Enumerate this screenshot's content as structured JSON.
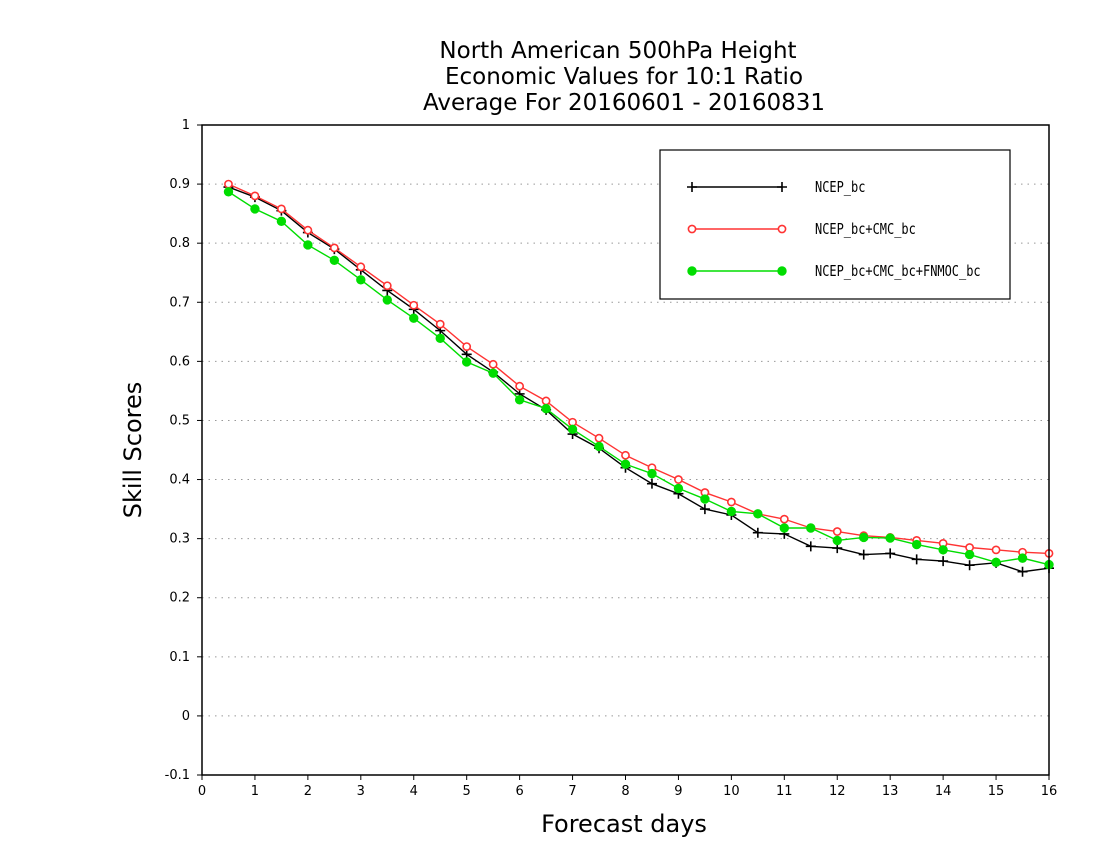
{
  "chart_data": {
    "type": "line",
    "title_lines": [
      "North American 500hPa Height",
      "Economic Values for 10:1 Ratio",
      "Average For 20160601 - 20160831"
    ],
    "xlabel": "Forecast days",
    "ylabel": "Skill Scores",
    "xlim": [
      0,
      16
    ],
    "ylim": [
      -0.1,
      1
    ],
    "xticks": [
      "0",
      "1",
      "2",
      "3",
      "4",
      "5",
      "6",
      "7",
      "8",
      "9",
      "10",
      "11",
      "12",
      "13",
      "14",
      "15",
      "16"
    ],
    "yticks": [
      "-0.1",
      "0",
      "0.1",
      "0.2",
      "0.3",
      "0.4",
      "0.5",
      "0.6",
      "0.7",
      "0.8",
      "0.9",
      "1"
    ],
    "grid": "horizontal dotted",
    "legend_position": "top-right",
    "x": [
      0.5,
      1,
      1.5,
      2,
      2.5,
      3,
      3.5,
      4,
      4.5,
      5,
      5.5,
      6,
      6.5,
      7,
      7.5,
      8,
      8.5,
      9,
      9.5,
      10,
      10.5,
      11,
      11.5,
      12,
      12.5,
      13,
      13.5,
      14,
      14.5,
      15,
      15.5,
      16
    ],
    "series": [
      {
        "name": "NCEP_bc",
        "color": "#000000",
        "marker": "plus",
        "values": [
          0.895,
          0.878,
          0.855,
          0.818,
          0.79,
          0.755,
          0.72,
          0.688,
          0.652,
          0.612,
          0.582,
          0.545,
          0.518,
          0.477,
          0.453,
          0.42,
          0.393,
          0.376,
          0.35,
          0.34,
          0.31,
          0.308,
          0.287,
          0.284,
          0.273,
          0.275,
          0.265,
          0.262,
          0.255,
          0.259,
          0.244,
          0.25
        ]
      },
      {
        "name": "NCEP_bc+CMC_bc",
        "color": "#ff3333",
        "marker": "open-circle",
        "values": [
          0.9,
          0.88,
          0.858,
          0.822,
          0.792,
          0.76,
          0.728,
          0.695,
          0.663,
          0.625,
          0.595,
          0.558,
          0.533,
          0.497,
          0.47,
          0.441,
          0.42,
          0.4,
          0.378,
          0.362,
          0.342,
          0.333,
          0.318,
          0.312,
          0.305,
          0.302,
          0.297,
          0.292,
          0.285,
          0.281,
          0.277,
          0.275
        ]
      },
      {
        "name": "NCEP_bc+CMC_bc+FNMOC_bc",
        "color": "#00dd00",
        "marker": "filled-circle",
        "values": [
          0.887,
          0.858,
          0.837,
          0.797,
          0.771,
          0.738,
          0.704,
          0.673,
          0.639,
          0.599,
          0.58,
          0.535,
          0.52,
          0.485,
          0.456,
          0.426,
          0.41,
          0.385,
          0.367,
          0.346,
          0.342,
          0.318,
          0.318,
          0.297,
          0.302,
          0.301,
          0.29,
          0.281,
          0.273,
          0.26,
          0.267,
          0.256
        ]
      }
    ]
  }
}
